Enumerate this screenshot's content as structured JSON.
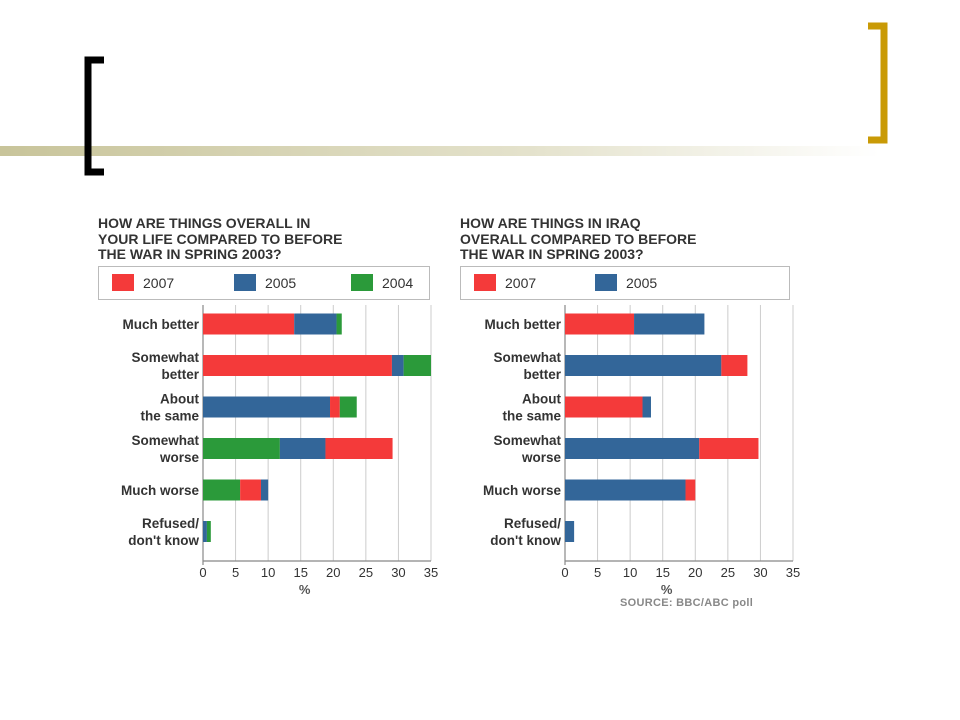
{
  "theme": {
    "bracket_left_color": "#000000",
    "bracket_right_color": "#c99a06",
    "rule_color": "#c8c49a",
    "color_2007": "#f43a3a",
    "color_2005": "#336699",
    "color_2004": "#2b9a3a"
  },
  "chart_data": [
    {
      "type": "bar",
      "orientation": "horizontal",
      "stacked": true,
      "title": "HOW ARE THINGS OVERALL IN\nYOUR LIFE COMPARED TO BEFORE\nTHE WAR IN SPRING 2003?",
      "categories": [
        "Much better",
        "Somewhat\nbetter",
        "About\nthe same",
        "Somewhat\nworse",
        "Much worse",
        "Refused/\ndon't know"
      ],
      "legend": [
        "2007",
        "2005",
        "2004"
      ],
      "xlabel": "%",
      "xlim": [
        0,
        35
      ],
      "xticks": [
        0,
        5,
        10,
        15,
        20,
        25,
        30,
        35
      ],
      "grid": true,
      "segments": [
        [
          {
            "name": "2007",
            "value": 14
          },
          {
            "name": "2005",
            "value": 6.5
          },
          {
            "name": "2004",
            "value": 0.8
          }
        ],
        [
          {
            "name": "2007",
            "value": 29
          },
          {
            "name": "2005",
            "value": 1.8
          },
          {
            "name": "2004",
            "value": 4.2
          }
        ],
        [
          {
            "name": "2005",
            "value": 19.5
          },
          {
            "name": "2007",
            "value": 1.5
          },
          {
            "name": "2004",
            "value": 2.6
          }
        ],
        [
          {
            "name": "2004",
            "value": 11.8
          },
          {
            "name": "2005",
            "value": 7
          },
          {
            "name": "2007",
            "value": 10.3
          }
        ],
        [
          {
            "name": "2004",
            "value": 5.7
          },
          {
            "name": "2007",
            "value": 3.2
          },
          {
            "name": "2005",
            "value": 1.1
          }
        ],
        [
          {
            "name": "2005",
            "value": 0.6
          },
          {
            "name": "2004",
            "value": 0.6
          }
        ]
      ]
    },
    {
      "type": "bar",
      "orientation": "horizontal",
      "stacked": true,
      "title": "HOW ARE THINGS IN IRAQ\nOVERALL COMPARED TO BEFORE\nTHE WAR IN SPRING 2003?",
      "categories": [
        "Much better",
        "Somewhat\nbetter",
        "About\nthe same",
        "Somewhat\nworse",
        "Much worse",
        "Refused/\ndon't know"
      ],
      "legend": [
        "2007",
        "2005"
      ],
      "xlabel": "%",
      "xlim": [
        0,
        35
      ],
      "xticks": [
        0,
        5,
        10,
        15,
        20,
        25,
        30,
        35
      ],
      "grid": true,
      "source": "SOURCE: BBC/ABC poll",
      "segments": [
        [
          {
            "name": "2007",
            "value": 10.6
          },
          {
            "name": "2005",
            "value": 10.8
          }
        ],
        [
          {
            "name": "2005",
            "value": 24
          },
          {
            "name": "2007",
            "value": 4
          }
        ],
        [
          {
            "name": "2007",
            "value": 11.9
          },
          {
            "name": "2005",
            "value": 1.3
          }
        ],
        [
          {
            "name": "2005",
            "value": 20.6
          },
          {
            "name": "2007",
            "value": 9.1
          }
        ],
        [
          {
            "name": "2005",
            "value": 18.5
          },
          {
            "name": "2007",
            "value": 1.5
          }
        ],
        [
          {
            "name": "2005",
            "value": 1.4
          }
        ]
      ]
    }
  ]
}
